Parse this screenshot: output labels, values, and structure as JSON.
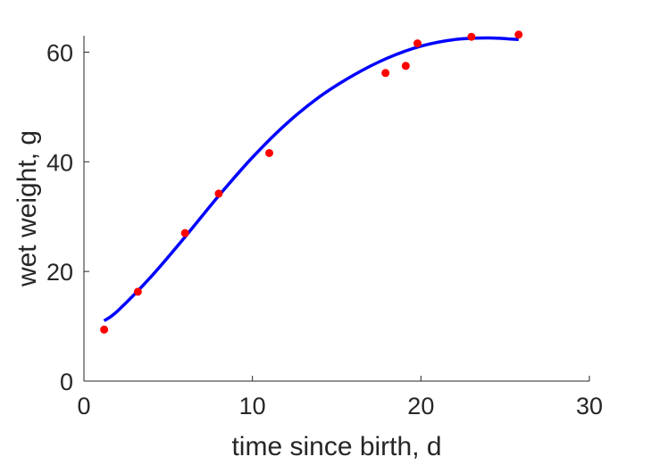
{
  "chart_data": {
    "type": "scatter",
    "xlabel": "time since birth, d",
    "ylabel": "wet weight, g",
    "xlim": [
      0,
      30
    ],
    "ylim": [
      0,
      63
    ],
    "xticks": [
      0,
      10,
      20,
      30
    ],
    "yticks": [
      0,
      20,
      40,
      60
    ],
    "grid": false,
    "series": [
      {
        "kind": "scatter",
        "color": "#ff0000",
        "x": [
          1.2,
          3.2,
          6.0,
          8.0,
          11.0,
          17.9,
          19.1,
          19.8,
          23.0,
          25.8
        ],
        "y": [
          9.4,
          16.3,
          27.0,
          34.2,
          41.6,
          56.2,
          57.5,
          61.6,
          62.8,
          63.2
        ]
      },
      {
        "kind": "line",
        "color": "#0000ff",
        "x": [
          1.2,
          2,
          4,
          6,
          8,
          10,
          12,
          14,
          16,
          18,
          20,
          22,
          24,
          25.8
        ],
        "y": [
          11.0,
          12.8,
          19.1,
          26.3,
          33.8,
          40.8,
          46.9,
          51.9,
          55.8,
          58.9,
          61.1,
          62.3,
          62.6,
          62.3
        ]
      }
    ]
  }
}
